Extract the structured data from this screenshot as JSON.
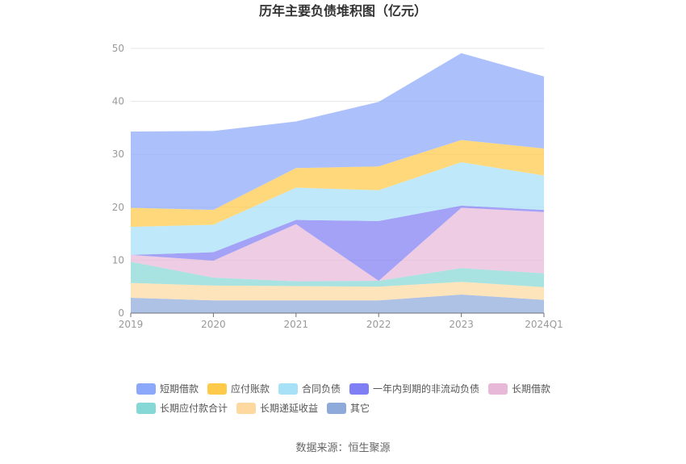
{
  "chart_data": {
    "type": "area",
    "stacked": true,
    "title": "历年主要负债堆积图（亿元）",
    "categories": [
      "2019",
      "2020",
      "2021",
      "2022",
      "2023",
      "2024Q1"
    ],
    "ylim": [
      0,
      50
    ],
    "yticks": [
      0,
      10,
      20,
      30,
      40,
      50
    ],
    "grid": true,
    "legend_position": "bottom",
    "series": [
      {
        "name": "其它",
        "color": "#8eaadb",
        "values": [
          2.9,
          2.4,
          2.4,
          2.4,
          3.5,
          2.5
        ]
      },
      {
        "name": "长期递延收益",
        "color": "#fdd9a0",
        "values": [
          2.8,
          2.8,
          2.7,
          2.6,
          2.4,
          2.4
        ]
      },
      {
        "name": "长期应付款合计",
        "color": "#86d8d6",
        "values": [
          4.0,
          1.5,
          0.9,
          1.1,
          2.6,
          2.6
        ]
      },
      {
        "name": "长期借款",
        "color": "#e8b8d9",
        "values": [
          1.3,
          3.2,
          10.8,
          0.0,
          11.4,
          11.6
        ]
      },
      {
        "name": "一年内到期的非流动负债",
        "color": "#7f7ef4",
        "values": [
          0.0,
          1.6,
          0.8,
          11.3,
          0.4,
          0.4
        ]
      },
      {
        "name": "合同负债",
        "color": "#a6e1f8",
        "values": [
          5.3,
          5.2,
          6.1,
          5.8,
          8.2,
          6.5
        ]
      },
      {
        "name": "应付账款",
        "color": "#ffc94a",
        "values": [
          3.6,
          2.8,
          3.7,
          4.5,
          4.2,
          5.1
        ]
      },
      {
        "name": "短期借款",
        "color": "#8ca8fb",
        "values": [
          14.4,
          14.9,
          8.8,
          12.2,
          16.4,
          13.6
        ]
      }
    ],
    "legend_order": [
      "短期借款",
      "应付账款",
      "合同负债",
      "一年内到期的非流动负债",
      "长期借款",
      "长期应付款合计",
      "长期递延收益",
      "其它"
    ]
  },
  "footer": {
    "source": "数据来源：恒生聚源"
  }
}
